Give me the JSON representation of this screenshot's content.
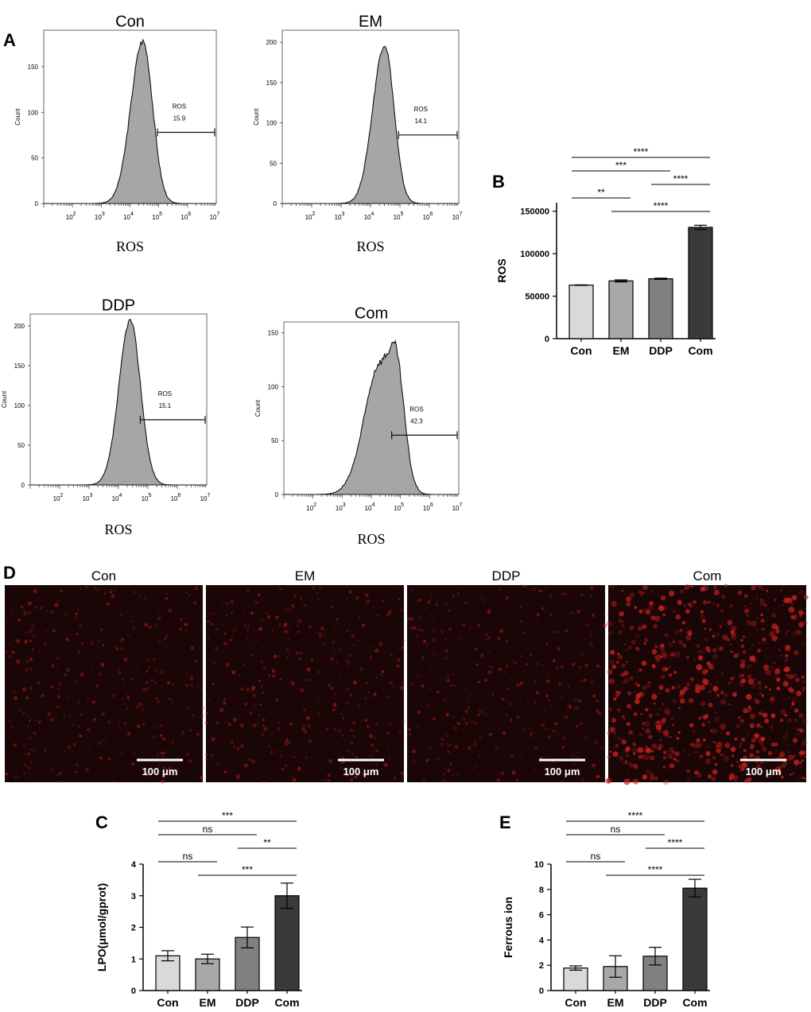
{
  "panel_letters": {
    "A": "A",
    "B": "B",
    "C": "C",
    "D": "D",
    "E": "E"
  },
  "colors": {
    "con": "#d9d9d9",
    "em": "#a8a8a8",
    "ddp": "#808080",
    "com": "#3a3a3a",
    "histogram_fill": "#a6a6a6",
    "microscopy_bg": "#1a0606",
    "microscopy_dot": "#d02020"
  },
  "chart_data": [
    {
      "id": "flow-con",
      "type": "area",
      "panel": "A",
      "title": "Con",
      "xlabel": "ROS",
      "ylabel": "Count",
      "x_scale": "log",
      "xlim": [
        10,
        10000000
      ],
      "xticks": [
        {
          "base": "10",
          "exp": "2",
          "v": 100
        },
        {
          "base": "10",
          "exp": "3",
          "v": 1000
        },
        {
          "base": "10",
          "exp": "4",
          "v": 10000
        },
        {
          "base": "10",
          "exp": "5",
          "v": 100000
        },
        {
          "base": "10",
          "exp": "6",
          "v": 1000000
        },
        {
          "base": "10",
          "exp": "7",
          "v": 10000000
        }
      ],
      "ylim": [
        0,
        190
      ],
      "yticks": [
        0,
        50,
        100,
        150
      ],
      "peak_x": 28000,
      "peak_count": 178,
      "gate": {
        "label": "ROS",
        "value": "15.9",
        "x_range": [
          90000,
          10000000
        ],
        "y": 78
      }
    },
    {
      "id": "flow-em",
      "type": "area",
      "panel": "A",
      "title": "EM",
      "xlabel": "ROS",
      "ylabel": "Count",
      "x_scale": "log",
      "xlim": [
        10,
        10000000
      ],
      "xticks": [
        {
          "base": "10",
          "exp": "2",
          "v": 100
        },
        {
          "base": "10",
          "exp": "3",
          "v": 1000
        },
        {
          "base": "10",
          "exp": "4",
          "v": 10000
        },
        {
          "base": "10",
          "exp": "5",
          "v": 100000
        },
        {
          "base": "10",
          "exp": "6",
          "v": 1000000
        },
        {
          "base": "10",
          "exp": "7",
          "v": 10000000
        }
      ],
      "ylim": [
        0,
        215
      ],
      "yticks": [
        0,
        50,
        100,
        150,
        200
      ],
      "peak_x": 30000,
      "peak_count": 197,
      "gate": {
        "label": "ROS",
        "value": "14.1",
        "x_range": [
          90000,
          10000000
        ],
        "y": 85
      }
    },
    {
      "id": "flow-ddp",
      "type": "area",
      "panel": "A",
      "title": "DDP",
      "xlabel": "ROS",
      "ylabel": "Count",
      "x_scale": "log",
      "xlim": [
        10,
        10000000
      ],
      "xticks": [
        {
          "base": "10",
          "exp": "2",
          "v": 100
        },
        {
          "base": "10",
          "exp": "3",
          "v": 1000
        },
        {
          "base": "10",
          "exp": "4",
          "v": 10000
        },
        {
          "base": "10",
          "exp": "5",
          "v": 100000
        },
        {
          "base": "10",
          "exp": "6",
          "v": 1000000
        },
        {
          "base": "10",
          "exp": "7",
          "v": 10000000
        }
      ],
      "ylim": [
        0,
        215
      ],
      "yticks": [
        0,
        50,
        100,
        150,
        200
      ],
      "peak_x": 25000,
      "peak_count": 207,
      "gate": {
        "label": "ROS",
        "value": "15.1",
        "x_range": [
          55000,
          10000000
        ],
        "y": 82
      }
    },
    {
      "id": "flow-com",
      "type": "area",
      "panel": "A",
      "title": "Com",
      "xlabel": "ROS",
      "ylabel": "Count",
      "x_scale": "log",
      "xlim": [
        10,
        10000000
      ],
      "xticks": [
        {
          "base": "10",
          "exp": "2",
          "v": 100
        },
        {
          "base": "10",
          "exp": "3",
          "v": 1000
        },
        {
          "base": "10",
          "exp": "4",
          "v": 10000
        },
        {
          "base": "10",
          "exp": "5",
          "v": 100000
        },
        {
          "base": "10",
          "exp": "6",
          "v": 1000000
        },
        {
          "base": "10",
          "exp": "7",
          "v": 10000000
        }
      ],
      "ylim": [
        0,
        160
      ],
      "yticks": [
        0,
        50,
        100,
        150
      ],
      "peak_x": 60000,
      "peak_count": 140,
      "gate": {
        "label": "ROS",
        "value": "42.3",
        "x_range": [
          50000,
          10000000
        ],
        "y": 55
      }
    },
    {
      "id": "bar-ros",
      "type": "bar",
      "panel": "B",
      "ylabel": "ROS",
      "categories": [
        "Con",
        "EM",
        "DDP",
        "Com"
      ],
      "values": [
        63000,
        68000,
        70500,
        131000
      ],
      "errors": [
        300,
        1200,
        700,
        2500
      ],
      "ylim": [
        0,
        160000
      ],
      "yticks": [
        {
          "v": 0,
          "label": "0"
        },
        {
          "v": 50000,
          "label": "50000"
        },
        {
          "v": 100000,
          "label": "100000"
        },
        {
          "v": 150000,
          "label": "150000"
        }
      ],
      "comparisons": [
        {
          "from": 0,
          "to": 3,
          "label": "****",
          "level": 4
        },
        {
          "from": 0,
          "to": 2,
          "label": "***",
          "level": 3
        },
        {
          "from": 2,
          "to": 3,
          "label": "****",
          "level": 2
        },
        {
          "from": 0,
          "to": 1,
          "label": "**",
          "level": 1
        },
        {
          "from": 1,
          "to": 3,
          "label": "****",
          "level": 0
        }
      ]
    },
    {
      "id": "bar-lpo",
      "type": "bar",
      "panel": "C",
      "ylabel": "LPO(μmol/gprot)",
      "categories": [
        "Con",
        "EM",
        "DDP",
        "Com"
      ],
      "values": [
        1.1,
        1.0,
        1.68,
        3.0
      ],
      "errors": [
        0.16,
        0.15,
        0.33,
        0.4
      ],
      "ylim": [
        0,
        4
      ],
      "yticks": [
        {
          "v": 0,
          "label": "0"
        },
        {
          "v": 1,
          "label": "1"
        },
        {
          "v": 2,
          "label": "2"
        },
        {
          "v": 3,
          "label": "3"
        },
        {
          "v": 4,
          "label": "4"
        }
      ],
      "comparisons": [
        {
          "from": 0,
          "to": 3,
          "label": "***",
          "level": 4
        },
        {
          "from": 0,
          "to": 2,
          "label": "ns",
          "level": 3
        },
        {
          "from": 2,
          "to": 3,
          "label": "**",
          "level": 2
        },
        {
          "from": 0,
          "to": 1,
          "label": "ns",
          "level": 1
        },
        {
          "from": 1,
          "to": 3,
          "label": "***",
          "level": 0
        }
      ]
    },
    {
      "id": "bar-ferrous",
      "type": "bar",
      "panel": "E",
      "ylabel": "Ferrous ion",
      "categories": [
        "Con",
        "EM",
        "DDP",
        "Com"
      ],
      "values": [
        1.78,
        1.9,
        2.72,
        8.1
      ],
      "errors": [
        0.17,
        0.85,
        0.7,
        0.7
      ],
      "ylim": [
        0,
        10
      ],
      "yticks": [
        {
          "v": 0,
          "label": "0"
        },
        {
          "v": 2,
          "label": "2"
        },
        {
          "v": 4,
          "label": "4"
        },
        {
          "v": 6,
          "label": "6"
        },
        {
          "v": 8,
          "label": "8"
        },
        {
          "v": 10,
          "label": "10"
        }
      ],
      "comparisons": [
        {
          "from": 0,
          "to": 3,
          "label": "****",
          "level": 4
        },
        {
          "from": 0,
          "to": 2,
          "label": "ns",
          "level": 3
        },
        {
          "from": 2,
          "to": 3,
          "label": "****",
          "level": 2
        },
        {
          "from": 0,
          "to": 1,
          "label": "ns",
          "level": 1
        },
        {
          "from": 1,
          "to": 3,
          "label": "****",
          "level": 0
        }
      ]
    }
  ],
  "microscopy": {
    "scale_bar": "100 μm",
    "images": [
      {
        "title": "Con",
        "intensity": 0.22
      },
      {
        "title": "EM",
        "intensity": 0.25
      },
      {
        "title": "DDP",
        "intensity": 0.2
      },
      {
        "title": "Com",
        "intensity": 0.85
      }
    ]
  }
}
